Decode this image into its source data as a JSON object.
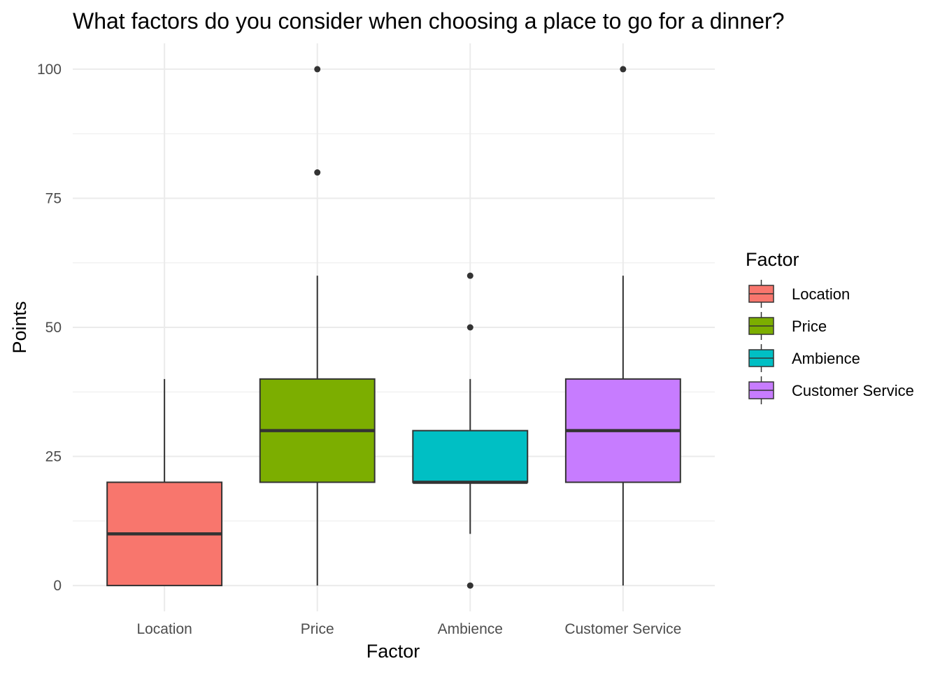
{
  "chart_data": {
    "type": "boxplot",
    "title": "What factors do you consider when choosing a place to go for a dinner?",
    "xlabel": "Factor",
    "ylabel": "Points",
    "ylim": [
      -5,
      105
    ],
    "yticks": [
      0,
      25,
      50,
      75,
      100
    ],
    "y_minor_ticks": [
      12.5,
      37.5,
      62.5,
      87.5
    ],
    "grid": true,
    "legend": {
      "title": "Factor",
      "position": "right"
    },
    "categories": [
      "Location",
      "Price",
      "Ambience",
      "Customer Service"
    ],
    "series": [
      {
        "name": "Location",
        "color": "#F8766D",
        "min": 0,
        "q1": 0,
        "median": 10,
        "q3": 20,
        "max": 40,
        "outliers": []
      },
      {
        "name": "Price",
        "color": "#7CAE00",
        "min": 0,
        "q1": 20,
        "median": 30,
        "q3": 40,
        "max": 60,
        "outliers": [
          80,
          100
        ]
      },
      {
        "name": "Ambience",
        "color": "#00BFC4",
        "min": 10,
        "q1": 20,
        "median": 20,
        "q3": 30,
        "max": 40,
        "outliers": [
          0,
          50,
          60
        ]
      },
      {
        "name": "Customer Service",
        "color": "#C77CFF",
        "min": 0,
        "q1": 20,
        "median": 30,
        "q3": 40,
        "max": 60,
        "outliers": [
          100
        ]
      }
    ]
  }
}
